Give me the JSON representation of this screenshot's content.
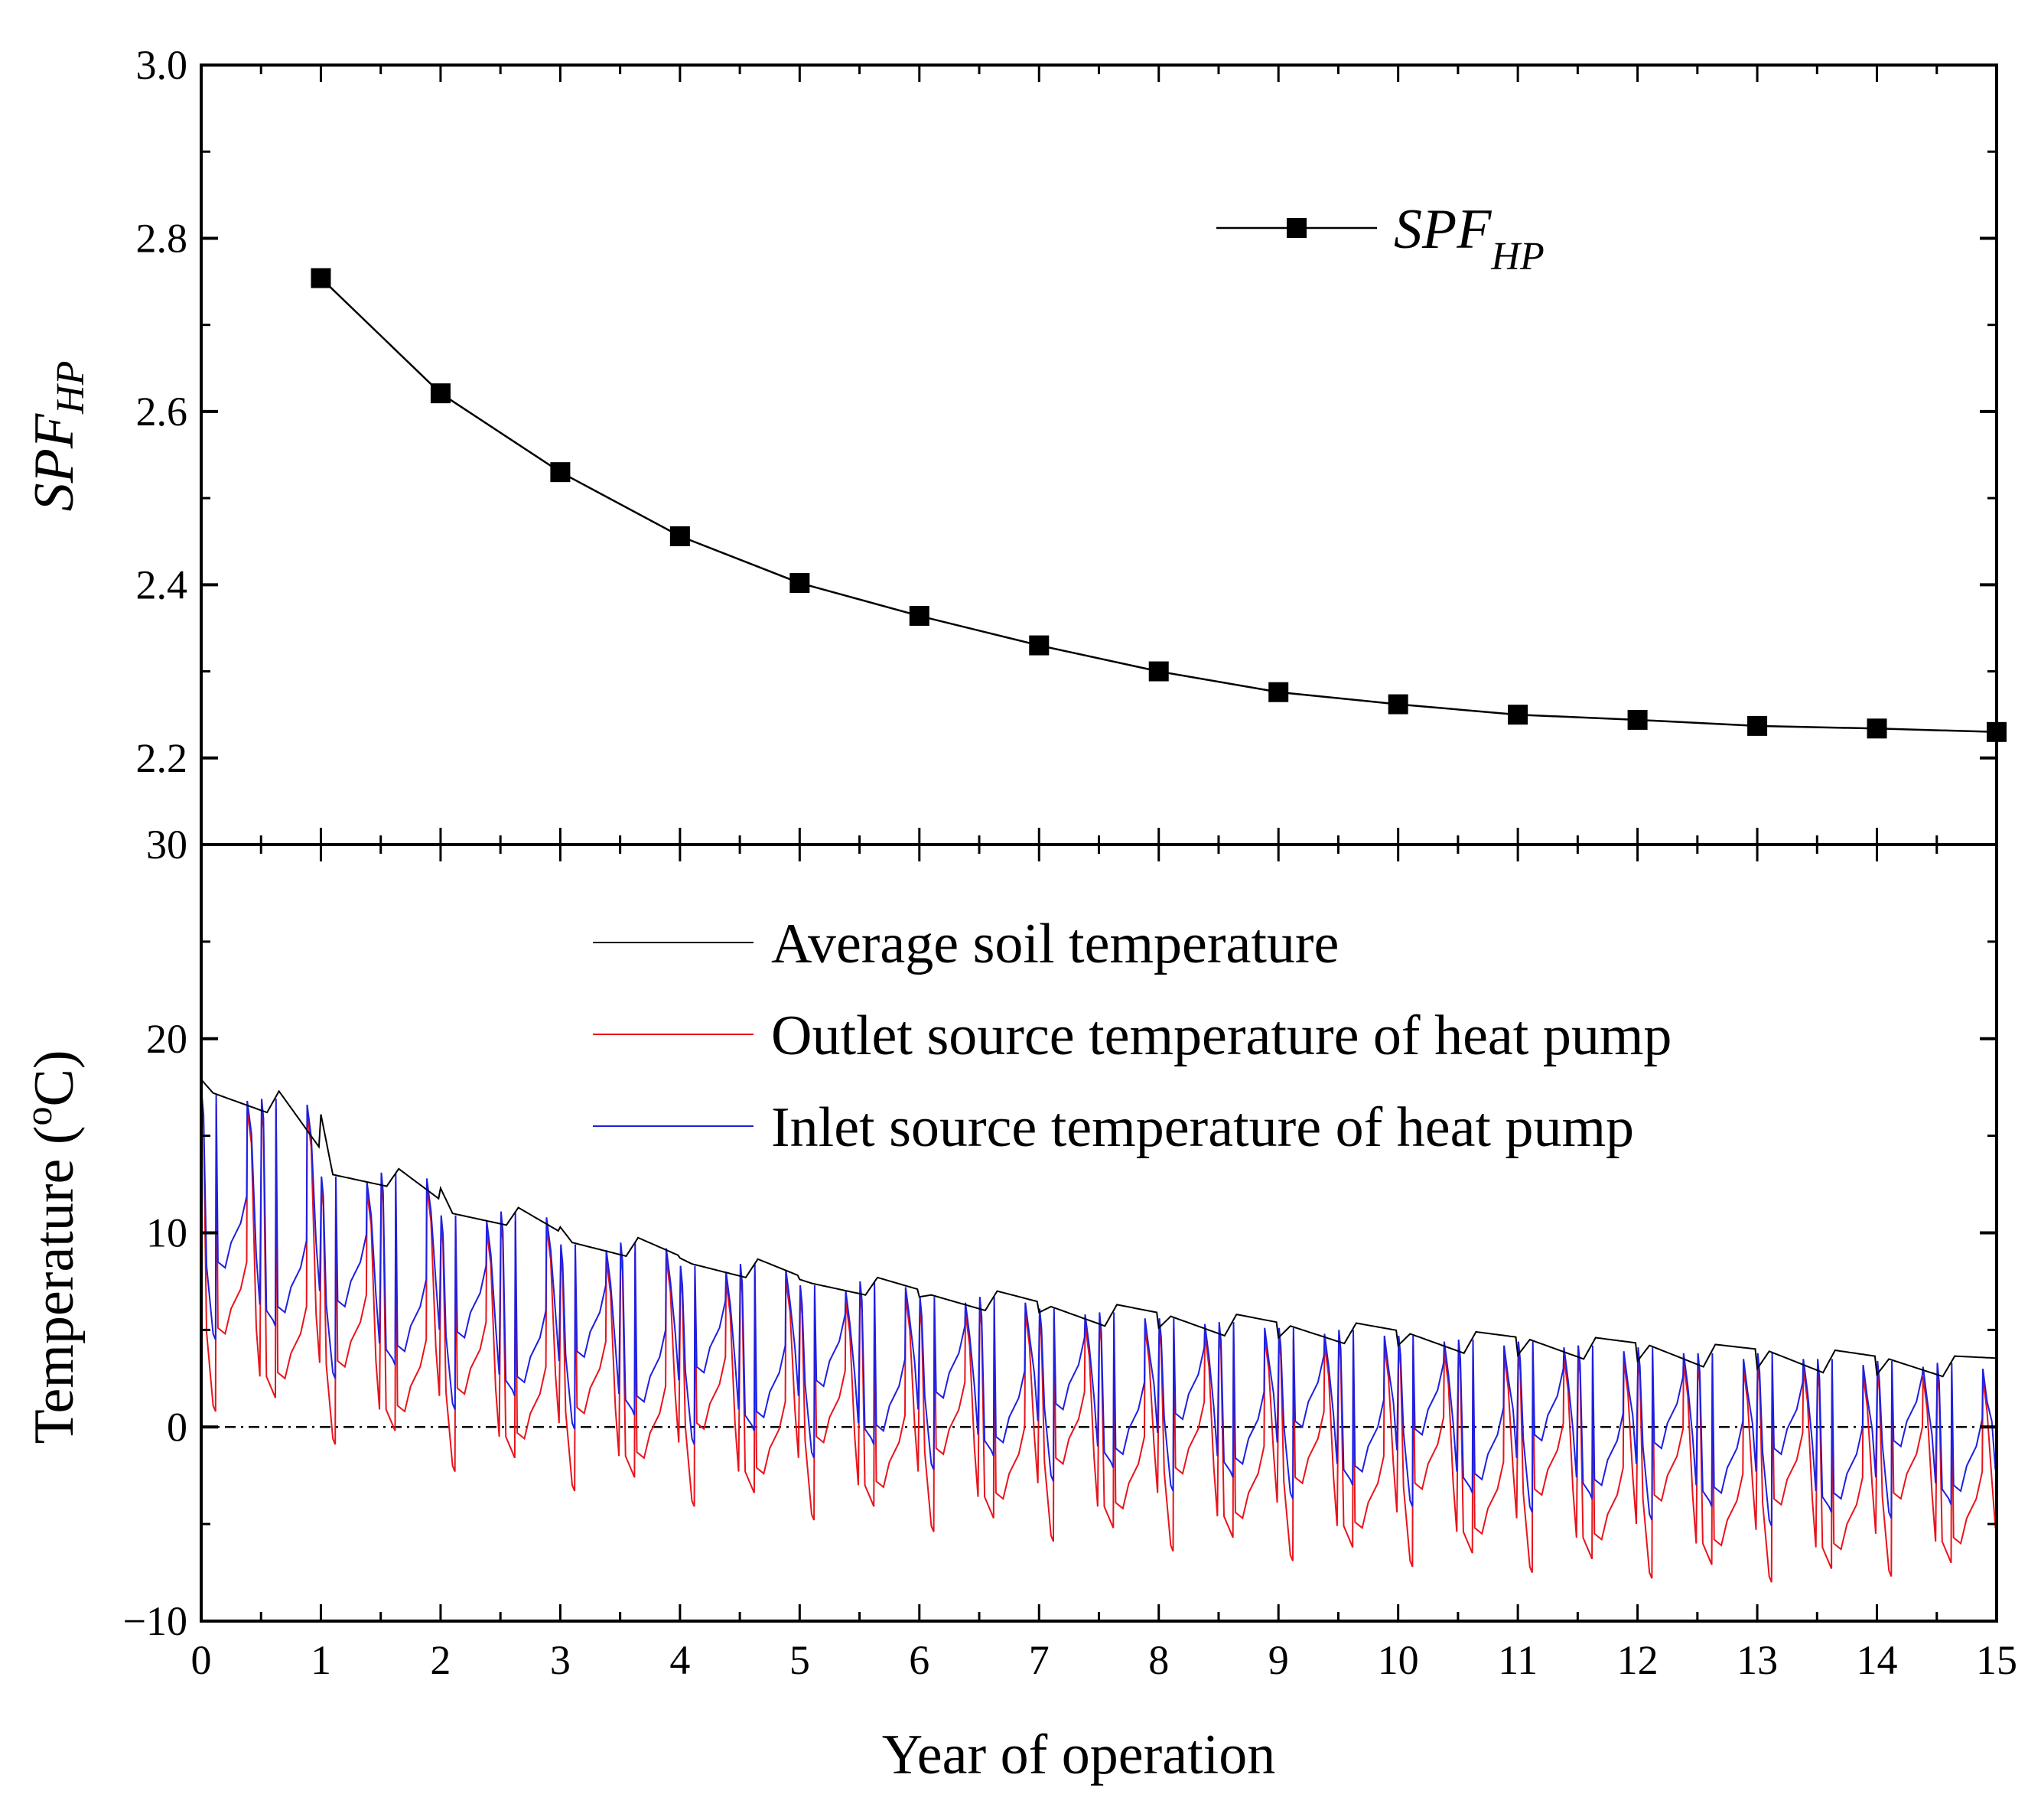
{
  "chart_data": [
    {
      "type": "line",
      "panel": "top",
      "ylabel": "SPF",
      "ylabel_subscript": "HP",
      "ylim": [
        2.1,
        3.0
      ],
      "yticks": [
        2.2,
        2.4,
        2.6,
        2.8,
        3.0
      ],
      "yticklabels": [
        "2.2",
        "2.4",
        "2.6",
        "2.8",
        "3.0"
      ],
      "legend": {
        "position": "top-right",
        "label": "SPF",
        "label_subscript": "HP",
        "marker": "square"
      },
      "series": [
        {
          "name": "SPF_HP",
          "color": "#000000",
          "x": [
            1,
            2,
            3,
            4,
            5,
            6,
            7,
            8,
            9,
            10,
            11,
            12,
            13,
            14,
            15
          ],
          "y": [
            2.754,
            2.621,
            2.53,
            2.456,
            2.402,
            2.364,
            2.33,
            2.3,
            2.276,
            2.262,
            2.25,
            2.244,
            2.237,
            2.234,
            2.23
          ]
        }
      ]
    },
    {
      "type": "line",
      "panel": "bottom",
      "xlabel": "Year of operation",
      "ylabel": "Temperature (",
      "ylabel_sup": "o",
      "ylabel_end": "C)",
      "xlim": [
        0,
        15
      ],
      "ylim": [
        -10,
        30
      ],
      "xticks": [
        0,
        1,
        2,
        3,
        4,
        5,
        6,
        7,
        8,
        9,
        10,
        11,
        12,
        13,
        14,
        15
      ],
      "xticklabels": [
        "0",
        "1",
        "2",
        "3",
        "4",
        "5",
        "6",
        "7",
        "8",
        "9",
        "10",
        "11",
        "12",
        "13",
        "14",
        "15"
      ],
      "yticks": [
        -10,
        0,
        10,
        20,
        30
      ],
      "yticklabels": [
        "−10",
        "0",
        "10",
        "20",
        "30"
      ],
      "reference_line": {
        "y": 0,
        "style": "dash-dot",
        "color": "#000000"
      },
      "legend": {
        "position": "top-right"
      },
      "series": [
        {
          "name": "Average soil temperature",
          "color": "#000000",
          "annual_peak": [
            17.2,
            13.0,
            11.0,
            9.5,
            8.4,
            7.4,
            6.8,
            6.2,
            5.7,
            5.2,
            4.8,
            4.5,
            4.2,
            3.9,
            3.5
          ],
          "annual_trough": [
            16.2,
            12.4,
            10.4,
            8.8,
            7.7,
            6.8,
            6.0,
            5.2,
            4.7,
            4.3,
            3.8,
            3.5,
            3.1,
            2.8,
            2.6
          ]
        },
        {
          "name": "Outlet source temperature of heat pump",
          "color": "#e8141b",
          "annual_min": [
            1.4,
            -0.3,
            -1.7,
            -2.7,
            -3.5,
            -4.2,
            -4.8,
            -5.3,
            -5.8,
            -6.3,
            -6.6,
            -6.9,
            -7.2,
            -7.4,
            -7.1
          ]
        },
        {
          "name": "Inlet source temperature of heat pump",
          "color": "#1f1fe0",
          "annual_min": [
            4.8,
            2.8,
            1.2,
            0.2,
            -0.6,
            -1.3,
            -1.9,
            -2.5,
            -3.0,
            -3.4,
            -3.8,
            -4.1,
            -4.5,
            -4.8,
            -4.4
          ]
        }
      ]
    }
  ]
}
